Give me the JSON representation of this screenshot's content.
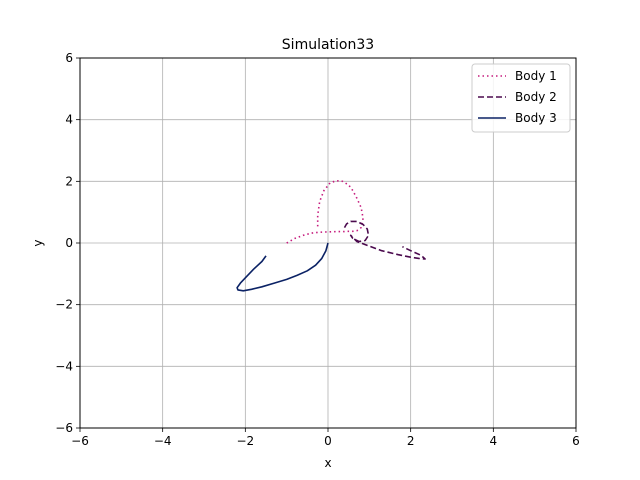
{
  "chart_data": {
    "type": "line",
    "title": "Simulation33",
    "xlabel": "x",
    "ylabel": "y",
    "xlim": [
      -6,
      6
    ],
    "ylim": [
      -6,
      6
    ],
    "xticks": [
      -6,
      -4,
      -2,
      0,
      2,
      4,
      6
    ],
    "yticks": [
      -6,
      -4,
      -2,
      0,
      2,
      4,
      6
    ],
    "grid": true,
    "legend_position": "top-right",
    "series": [
      {
        "name": "Body 1",
        "color": "#c51b7d",
        "style": "dotted",
        "x": [
          -1.0,
          -0.8,
          -0.6,
          -0.4,
          -0.2,
          0.0,
          0.2,
          0.4,
          0.5,
          0.6,
          0.7,
          0.8,
          0.85,
          0.8,
          0.7,
          0.6,
          0.5,
          0.35,
          0.2,
          0.05,
          -0.1,
          -0.2,
          -0.25,
          -0.25
        ],
        "y": [
          0.0,
          0.15,
          0.25,
          0.32,
          0.35,
          0.36,
          0.37,
          0.37,
          0.38,
          0.38,
          0.4,
          0.5,
          0.8,
          1.15,
          1.45,
          1.7,
          1.88,
          2.0,
          2.02,
          1.95,
          1.7,
          1.35,
          0.9,
          0.5
        ]
      },
      {
        "name": "Body 2",
        "color": "#4b0a4e",
        "style": "dashed",
        "x": [
          0.4,
          0.45,
          0.55,
          0.7,
          0.85,
          0.95,
          0.98,
          0.9,
          0.75,
          0.6,
          0.55,
          0.7,
          1.0,
          1.3,
          1.7,
          2.0,
          2.2,
          2.35,
          2.25,
          2.0,
          1.8
        ],
        "y": [
          0.5,
          0.62,
          0.7,
          0.7,
          0.6,
          0.45,
          0.25,
          0.08,
          0.05,
          0.15,
          0.25,
          0.05,
          -0.1,
          -0.25,
          -0.38,
          -0.46,
          -0.5,
          -0.52,
          -0.4,
          -0.25,
          -0.12
        ]
      },
      {
        "name": "Body 3",
        "color": "#0b2265",
        "style": "solid",
        "x": [
          0.0,
          -0.05,
          -0.15,
          -0.3,
          -0.5,
          -0.75,
          -1.0,
          -1.3,
          -1.6,
          -1.85,
          -2.05,
          -2.18,
          -2.2,
          -2.12,
          -1.98,
          -1.8,
          -1.6,
          -1.5
        ],
        "y": [
          0.0,
          -0.25,
          -0.5,
          -0.72,
          -0.9,
          -1.05,
          -1.18,
          -1.3,
          -1.42,
          -1.5,
          -1.55,
          -1.52,
          -1.45,
          -1.3,
          -1.1,
          -0.85,
          -0.6,
          -0.42
        ]
      }
    ]
  }
}
